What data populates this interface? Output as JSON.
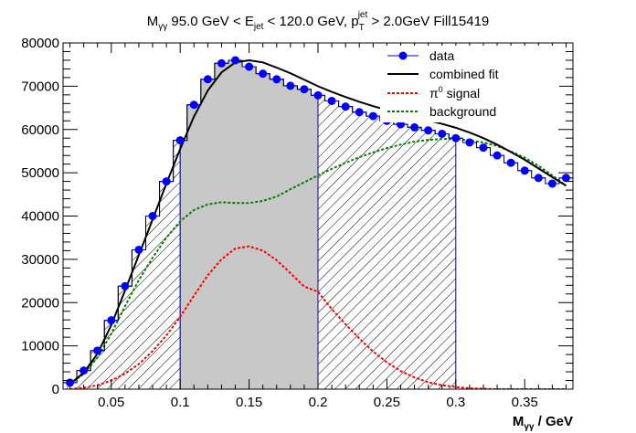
{
  "chart_data": {
    "type": "scatter",
    "title": "Mγγ 95.0 GeV < Ejet < 120.0 GeV, pTjet > 2.0GeV Fill15419",
    "title_parts": {
      "m": "M",
      "m_sub": "γγ",
      "p1": " 95.0 GeV < E",
      "e_sub": "jet",
      "p2": " < 120.0 GeV, p",
      "p_sub": "T",
      "p_sup": "jet",
      "p3": " > 2.0GeV Fill15419"
    },
    "xlabel": "Mγγ / GeV",
    "xlabel_parts": {
      "m": "M",
      "sub": "γγ",
      "rest": " / GeV"
    },
    "ylabel": "",
    "xlim": [
      0.015,
      0.385
    ],
    "ylim": [
      0,
      80000
    ],
    "xticks": [
      0.05,
      0.1,
      0.15,
      0.2,
      0.25,
      0.3,
      0.35
    ],
    "xtick_labels": [
      "0.05",
      "0.1",
      "0.15",
      "0.2",
      "0.25",
      "0.3",
      "0.35"
    ],
    "yticks": [
      0,
      10000,
      20000,
      30000,
      40000,
      50000,
      60000,
      70000,
      80000
    ],
    "ytick_labels": [
      "0",
      "10000",
      "20000",
      "30000",
      "40000",
      "50000",
      "60000",
      "70000",
      "80000"
    ],
    "bin_width": 0.01,
    "data": {
      "x": [
        0.02,
        0.03,
        0.04,
        0.05,
        0.06,
        0.07,
        0.08,
        0.09,
        0.1,
        0.11,
        0.12,
        0.13,
        0.14,
        0.15,
        0.16,
        0.17,
        0.18,
        0.19,
        0.2,
        0.21,
        0.22,
        0.23,
        0.24,
        0.25,
        0.26,
        0.27,
        0.28,
        0.29,
        0.3,
        0.31,
        0.32,
        0.33,
        0.34,
        0.35,
        0.36,
        0.37,
        0.38
      ],
      "y": [
        1500,
        4300,
        8900,
        15900,
        23800,
        32200,
        40000,
        48000,
        57500,
        65700,
        71600,
        75300,
        76000,
        74500,
        72900,
        71600,
        70100,
        69300,
        67900,
        66600,
        65300,
        64000,
        63100,
        62000,
        61200,
        60500,
        59800,
        59000,
        58000,
        57000,
        55800,
        54000,
        52300,
        50500,
        48800,
        47500,
        48800
      ]
    },
    "combined_fit": {
      "x": [
        0.02,
        0.03,
        0.04,
        0.05,
        0.06,
        0.07,
        0.08,
        0.09,
        0.1,
        0.11,
        0.12,
        0.13,
        0.14,
        0.15,
        0.16,
        0.17,
        0.18,
        0.19,
        0.2,
        0.21,
        0.22,
        0.23,
        0.24,
        0.25,
        0.26,
        0.27,
        0.28,
        0.29,
        0.3,
        0.31,
        0.32,
        0.33,
        0.34,
        0.35,
        0.36,
        0.37,
        0.38
      ],
      "y": [
        1200,
        3800,
        8200,
        14800,
        22800,
        31000,
        39200,
        47500,
        55500,
        63000,
        69000,
        73200,
        75500,
        76000,
        75500,
        74300,
        73000,
        71500,
        70000,
        68700,
        67500,
        66400,
        65400,
        64500,
        63700,
        62900,
        62100,
        61300,
        60400,
        59300,
        58000,
        56500,
        54800,
        53000,
        51000,
        49000,
        47000
      ]
    },
    "signal": {
      "x": [
        0.02,
        0.03,
        0.04,
        0.05,
        0.06,
        0.07,
        0.08,
        0.09,
        0.1,
        0.11,
        0.12,
        0.13,
        0.14,
        0.15,
        0.16,
        0.17,
        0.18,
        0.19,
        0.2,
        0.21,
        0.22,
        0.23,
        0.24,
        0.25,
        0.26,
        0.27,
        0.28,
        0.29,
        0.3,
        0.31,
        0.32,
        0.33,
        0.34,
        0.35,
        0.36,
        0.37,
        0.38
      ],
      "y": [
        0,
        300,
        900,
        2000,
        3600,
        5800,
        8800,
        12400,
        16700,
        21600,
        26300,
        30000,
        32500,
        33000,
        32000,
        29800,
        26800,
        23700,
        22500,
        18500,
        15000,
        11700,
        8700,
        6200,
        4200,
        2700,
        1600,
        900,
        500,
        200,
        100,
        0,
        0,
        0,
        0,
        0,
        0
      ]
    },
    "background": {
      "x": [
        0.02,
        0.03,
        0.04,
        0.05,
        0.06,
        0.07,
        0.08,
        0.09,
        0.1,
        0.11,
        0.12,
        0.13,
        0.14,
        0.15,
        0.16,
        0.17,
        0.18,
        0.19,
        0.2,
        0.21,
        0.22,
        0.23,
        0.24,
        0.25,
        0.26,
        0.27,
        0.28,
        0.29,
        0.3,
        0.31,
        0.32,
        0.33,
        0.34,
        0.35,
        0.36,
        0.37,
        0.38
      ],
      "y": [
        1200,
        3500,
        7300,
        12800,
        19200,
        25200,
        30400,
        35000,
        38800,
        41400,
        42700,
        43200,
        43000,
        43000,
        43500,
        44500,
        46200,
        47800,
        49400,
        50900,
        52300,
        53600,
        54700,
        55700,
        56500,
        57200,
        57600,
        57800,
        57800,
        57500,
        57000,
        56200,
        54900,
        53500,
        51600,
        49400,
        47000
      ]
    },
    "regions": [
      {
        "name": "left-sideband",
        "fill": "hatch",
        "x0": 0.0,
        "x1": 0.1
      },
      {
        "name": "signal-region",
        "fill": "#c8c8c8",
        "x0": 0.1,
        "x1": 0.2
      },
      {
        "name": "right-sideband",
        "fill": "hatch",
        "x0": 0.2,
        "x1": 0.3
      }
    ],
    "legend": {
      "placement": "top-right",
      "entries": [
        {
          "label": "data",
          "color": "#0000ff",
          "style": "marker-line"
        },
        {
          "label": "combined fit",
          "color": "#000000",
          "style": "solid"
        },
        {
          "label": "π0 signal",
          "color": "#ff0000",
          "style": "dotted"
        },
        {
          "label": "background",
          "color": "#008000",
          "style": "dotted"
        }
      ],
      "signal_parts": {
        "pi": "π",
        "sup": "0",
        "rest": " signal"
      }
    },
    "colors": {
      "data": "#0000ff",
      "fit": "#000000",
      "signal": "#ff0000",
      "background": "#008000",
      "region_fill": "#c8c8c8",
      "region_edge": "#0000a0"
    }
  }
}
